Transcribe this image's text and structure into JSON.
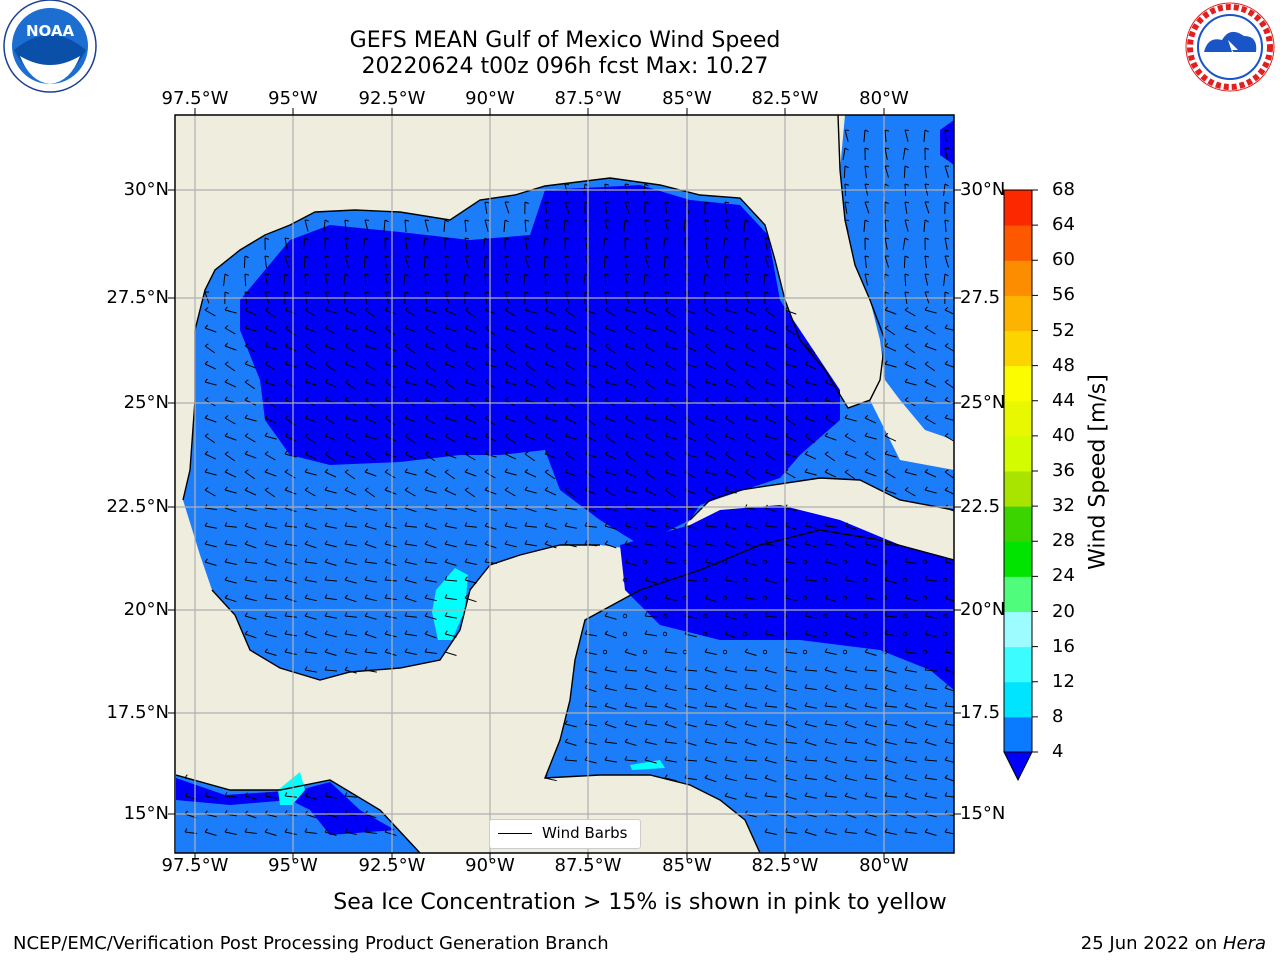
{
  "title": {
    "line1": "GEFS MEAN Gulf of Mexico Wind Speed",
    "line2": "20220624 t00z 096h fcst   Max: 10.27"
  },
  "logos": {
    "noaa": {
      "text": "NOAA",
      "ring_text": "NATIONAL OCEANIC AND ATMOSPHERIC ADMINISTRATION · U.S. DEPARTMENT OF COMMERCE",
      "icon": "noaa-logo-icon"
    },
    "nws": {
      "ring_text": "NATIONAL WEATHER SERVICE",
      "icon": "nws-logo-icon"
    }
  },
  "axes": {
    "lon_labels": [
      "97.5°W",
      "95°W",
      "92.5°W",
      "90°W",
      "87.5°W",
      "85°W",
      "82.5°W",
      "80°W"
    ],
    "lat_labels_left": [
      "30°N",
      "27.5°N",
      "25°N",
      "22.5°N",
      "20°N",
      "17.5°N",
      "15°N"
    ],
    "lat_labels_right": [
      "30°N",
      "27.5",
      "25°N",
      "22.5",
      "20°N",
      "17.5",
      "15°N"
    ],
    "lon_range": [
      -98,
      -78.2
    ],
    "lat_range": [
      14,
      31.6
    ],
    "grid": true
  },
  "legend": {
    "label": "Wind Barbs"
  },
  "colorbar": {
    "label": "Wind Speed [m/s]",
    "ticks": [
      4,
      8,
      12,
      16,
      20,
      24,
      28,
      32,
      36,
      40,
      44,
      48,
      52,
      56,
      60,
      64,
      68
    ],
    "colors": [
      "#0a7bff",
      "#00e4ff",
      "#3cfcff",
      "#9cfcff",
      "#50fc7c",
      "#00e400",
      "#3cd400",
      "#a8e400",
      "#d4fc00",
      "#e8f800",
      "#fcfc00",
      "#fcd400",
      "#fcb400",
      "#fc8c00",
      "#fc5800",
      "#fc2800"
    ],
    "under_color": "#0000ff"
  },
  "colors": {
    "land": "#efedde",
    "ocean_low": "#0000f8",
    "ocean_mid": "#1c7dfb",
    "ocean_high": "#00ffff"
  },
  "caption": "Sea Ice Concentration > 15% is shown in pink to yellow",
  "footer": {
    "left": "NCEP/EMC/Verification Post Processing Product Generation Branch",
    "date": "25 Jun 2022 on ",
    "machine": "Hera"
  }
}
